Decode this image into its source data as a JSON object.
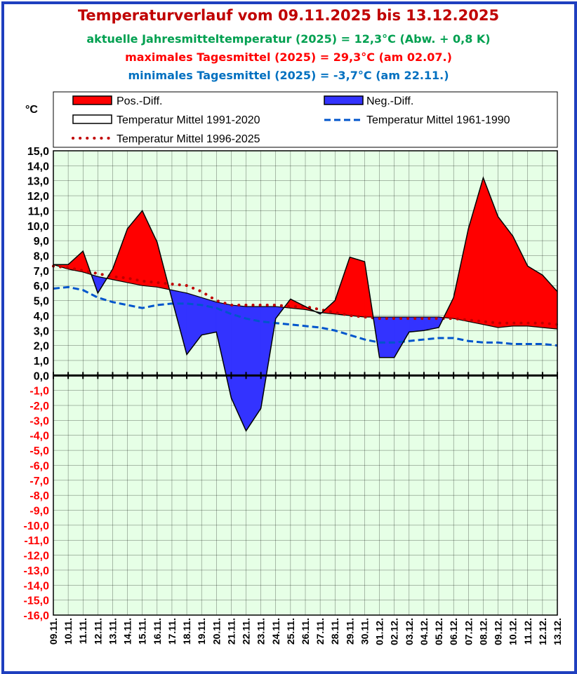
{
  "chart_data": {
    "type": "area",
    "title": "Temperaturverlauf vom 09.11.2025 bis 13.12.2025",
    "subtitles": [
      "aktuelle Jahresmitteltemperatur (2025) = 12,3°C (Abw. + 0,8  K)",
      "maximales Tagesmittel (2025) = 29,3°C (am 02.07.)",
      "minimales Tagesmittel (2025) = -3,7°C (am 22.11.)"
    ],
    "ylabel": "°C",
    "ylim": [
      -16,
      15
    ],
    "yticks": [
      "15,0",
      "14,0",
      "13,0",
      "12,0",
      "11,0",
      "10,0",
      "9,0",
      "8,0",
      "7,0",
      "6,0",
      "5,0",
      "4,0",
      "3,0",
      "2,0",
      "1,0",
      "0,0",
      "-1,0",
      "-2,0",
      "-3,0",
      "-4,0",
      "-5,0",
      "-6,0",
      "-7,0",
      "-8,0",
      "-9,0",
      "-10,0",
      "-11,0",
      "-12,0",
      "-13,0",
      "-14,0",
      "-15,0",
      "-16,0"
    ],
    "categories": [
      "09.11.",
      "10.11.",
      "11.11.",
      "12.11.",
      "13.11.",
      "14.11.",
      "15.11.",
      "16.11.",
      "17.11.",
      "18.11.",
      "19.11.",
      "20.11.",
      "21.11.",
      "22.11.",
      "23.11.",
      "24.11.",
      "25.11.",
      "26.11.",
      "27.11.",
      "28.11.",
      "29.11.",
      "30.11.",
      "01.12.",
      "02.12.",
      "03.12.",
      "04.12.",
      "05.12.",
      "06.12.",
      "07.12.",
      "08.12.",
      "09.12.",
      "10.12.",
      "11.12.",
      "12.12.",
      "13.12."
    ],
    "grid": true,
    "legend_position": "top",
    "legend": [
      "Pos.-Diff.",
      "Neg.-Diff.",
      "Temperatur Mittel 1991-2020",
      "Temperatur Mittel 1961-1990",
      "Temperatur Mittel 1996-2025"
    ],
    "series": [
      {
        "name": "Temperatur 2025",
        "values": [
          7.4,
          7.4,
          8.3,
          5.5,
          7.1,
          9.8,
          11.0,
          8.9,
          5.1,
          1.4,
          2.7,
          2.9,
          -1.5,
          -3.7,
          -2.2,
          3.8,
          5.1,
          4.6,
          4.1,
          5.0,
          7.9,
          7.6,
          1.2,
          1.2,
          2.9,
          3.0,
          3.2,
          5.2,
          9.8,
          13.2,
          10.6,
          9.3,
          7.3,
          6.7,
          5.6
        ]
      },
      {
        "name": "Temperatur Mittel 1991-2020",
        "values": [
          7.4,
          7.1,
          6.9,
          6.6,
          6.4,
          6.2,
          6.0,
          5.9,
          5.7,
          5.5,
          5.2,
          4.9,
          4.7,
          4.6,
          4.6,
          4.6,
          4.5,
          4.4,
          4.2,
          4.1,
          4.0,
          3.9,
          3.9,
          3.9,
          3.9,
          3.9,
          3.9,
          3.8,
          3.6,
          3.4,
          3.2,
          3.3,
          3.3,
          3.2,
          3.1
        ]
      },
      {
        "name": "Temperatur Mittel 1961-1990",
        "values": [
          5.8,
          5.9,
          5.7,
          5.2,
          4.9,
          4.7,
          4.5,
          4.7,
          4.8,
          4.8,
          4.7,
          4.5,
          4.1,
          3.8,
          3.6,
          3.5,
          3.4,
          3.3,
          3.2,
          3.0,
          2.7,
          2.4,
          2.2,
          2.2,
          2.3,
          2.4,
          2.5,
          2.5,
          2.3,
          2.2,
          2.2,
          2.1,
          2.1,
          2.1,
          2.0
        ]
      },
      {
        "name": "Temperatur Mittel 1996-2025",
        "values": [
          7.3,
          7.2,
          7.0,
          6.8,
          6.6,
          6.5,
          6.3,
          6.2,
          6.1,
          6.0,
          5.6,
          5.0,
          4.7,
          4.7,
          4.7,
          4.7,
          4.6,
          4.6,
          4.4,
          4.2,
          4.0,
          3.9,
          3.8,
          3.8,
          3.8,
          3.8,
          3.8,
          3.8,
          3.7,
          3.6,
          3.5,
          3.5,
          3.5,
          3.5,
          3.4
        ]
      }
    ],
    "colors": {
      "positive": "#ff0000",
      "negative": "#3333ff",
      "plot_background": "#e6ffe6",
      "mean_1961_1990": "#0055cc",
      "mean_1996_2025": "#c00000",
      "tick_positive": "#000000",
      "tick_negative": "#ff0000"
    }
  }
}
